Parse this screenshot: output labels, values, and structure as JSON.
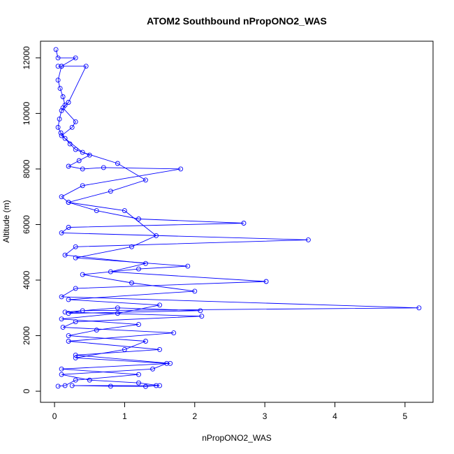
{
  "chart_data": {
    "type": "scatter",
    "title": "ATOM2 Southbound nPropONO2_WAS",
    "xlabel": "nPropONO2_WAS",
    "ylabel": "Altitude (m)",
    "xlim": [
      -0.2,
      5.4
    ],
    "ylim": [
      -400,
      12600
    ],
    "x_ticks": [
      0,
      1,
      2,
      3,
      4,
      5
    ],
    "x_tick_labels": [
      "0",
      "1",
      "2",
      "3",
      "4",
      "5"
    ],
    "y_ticks": [
      0,
      2000,
      4000,
      6000,
      8000,
      10000,
      12000
    ],
    "y_tick_labels": [
      "0",
      "2000",
      "4000",
      "6000",
      "8000",
      "10000",
      "12000"
    ],
    "grid": false,
    "legend": "none",
    "series_color": "#0000ff",
    "marker": "open-circle",
    "connected": true,
    "series": [
      {
        "x": [
          0.02,
          0.05,
          0.3,
          0.1,
          0.05,
          0.08,
          0.12,
          0.15,
          0.1,
          0.07,
          0.05,
          0.09,
          0.15,
          0.22,
          0.3,
          0.5,
          0.35,
          0.2,
          0.4,
          0.7,
          1.8,
          0.4,
          0.1,
          0.2,
          0.6,
          1.2,
          2.7,
          0.2,
          0.1,
          3.62,
          0.3,
          0.15,
          1.3,
          0.8,
          3.02,
          0.3,
          0.1,
          5.2,
          0.4,
          0.2,
          2.08,
          0.9,
          0.15,
          2.1,
          0.3,
          0.12,
          1.7,
          0.2,
          1.5,
          0.3,
          1.65,
          0.1,
          1.2,
          0.3,
          0.15,
          0.05
        ],
        "y": [
          12300,
          12000,
          12000,
          11700,
          11200,
          10900,
          10600,
          10300,
          10100,
          9800,
          9500,
          9300,
          9100,
          8900,
          8700,
          8500,
          8300,
          8100,
          8000,
          8050,
          8000,
          7400,
          7000,
          6800,
          6500,
          6200,
          6050,
          5900,
          5700,
          5450,
          5200,
          4900,
          4600,
          4300,
          3950,
          3700,
          3400,
          3000,
          2900,
          2800,
          2900,
          3000,
          2850,
          2700,
          2500,
          2300,
          2100,
          1800,
          1500,
          1300,
          1000,
          800,
          600,
          400,
          200,
          180
        ]
      },
      {
        "x": [
          0.05,
          0.1,
          0.45,
          0.2,
          0.12,
          0.3,
          0.25,
          0.1,
          0.4,
          0.9,
          1.3,
          0.8,
          0.2,
          1.0,
          1.45,
          1.1,
          0.3,
          1.9,
          1.2,
          0.4,
          1.1,
          2.0,
          0.2,
          1.5,
          0.9,
          0.1,
          1.2,
          0.6,
          0.2,
          1.3,
          1.0,
          0.3,
          1.6,
          1.4,
          0.1,
          0.5,
          1.2,
          1.5,
          0.25,
          0.8,
          1.3,
          1.45
        ],
        "y": [
          11700,
          11700,
          11700,
          10400,
          10200,
          9700,
          9500,
          9200,
          8600,
          8200,
          7600,
          7200,
          6800,
          6500,
          5600,
          5200,
          4800,
          4500,
          4400,
          4200,
          3900,
          3600,
          3300,
          3100,
          2800,
          2600,
          2400,
          2200,
          2000,
          1800,
          1500,
          1200,
          1000,
          800,
          600,
          400,
          300,
          200,
          200,
          180,
          170,
          200
        ]
      }
    ]
  }
}
